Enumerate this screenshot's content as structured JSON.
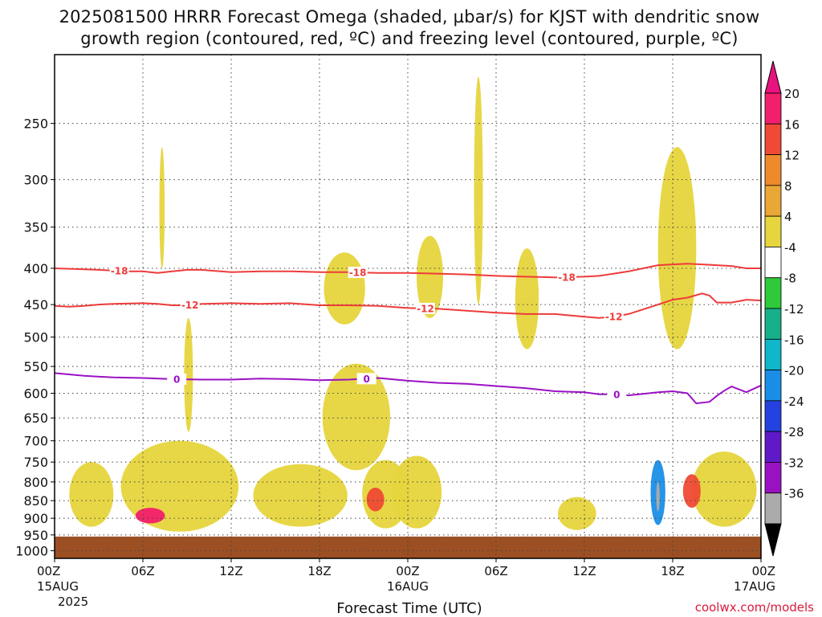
{
  "title_line1": "2025081500 HRRR Forecast Omega (shaded, µbar/s) for KJST with dendritic snow",
  "title_line2": "growth region (contoured, red, ºC) and freezing level (contoured, purple, ºC)",
  "credit": "coolwx.com/models",
  "colors": {
    "red_contour": "#ee3b3b",
    "purple_contour": "#9a11c4",
    "ground": "#9c4f23",
    "title_text": "#111111",
    "credit_text": "#d81b3a"
  },
  "chart_data": {
    "type": "heatmap",
    "xlabel": "Forecast Time (UTC)",
    "x_ticks": [
      {
        "label": "00Z",
        "sub1": "15AUG",
        "sub2": "2025",
        "hour": 0
      },
      {
        "label": "06Z",
        "sub1": "",
        "sub2": "",
        "hour": 6
      },
      {
        "label": "12Z",
        "sub1": "",
        "sub2": "",
        "hour": 12
      },
      {
        "label": "18Z",
        "sub1": "",
        "sub2": "",
        "hour": 18
      },
      {
        "label": "00Z",
        "sub1": "16AUG",
        "sub2": "",
        "hour": 24
      },
      {
        "label": "06Z",
        "sub1": "",
        "sub2": "",
        "hour": 30
      },
      {
        "label": "12Z",
        "sub1": "",
        "sub2": "",
        "hour": 36
      },
      {
        "label": "18Z",
        "sub1": "",
        "sub2": "",
        "hour": 42
      },
      {
        "label": "00Z",
        "sub1": "17AUG",
        "sub2": "",
        "hour": 48
      }
    ],
    "y_ticks": [
      "250",
      "300",
      "350",
      "400",
      "450",
      "500",
      "550",
      "600",
      "650",
      "700",
      "750",
      "800",
      "850",
      "900",
      "950",
      "1000"
    ],
    "y_scale": "log",
    "y_reversed": true,
    "ylim_hPa": [
      200,
      1025
    ],
    "xlim_hours": [
      0,
      48
    ],
    "grid": true,
    "colorbar": {
      "labels": [
        "20",
        "16",
        "12",
        "8",
        "4",
        "-4",
        "-8",
        "-12",
        "-16",
        "-20",
        "-24",
        "-28",
        "-32",
        "-36"
      ],
      "colors": [
        "#f21f6c",
        "#ef4a35",
        "#ef8a2c",
        "#e9a735",
        "#e6d53c",
        "#ffffff",
        "#2fc93a",
        "#18b08a",
        "#0fb7c8",
        "#1a8ee6",
        "#2442e0",
        "#6019c8",
        "#9a11c4",
        "#ababab"
      ],
      "top_arrow_color": "#e8137e",
      "bottom_arrow_color": "#000000"
    },
    "contours": [
      {
        "name": "-18",
        "color": "#ee3b3b",
        "label_hours": [
          4.4,
          20.6,
          34.8
        ],
        "points": [
          [
            0,
            400
          ],
          [
            1.5,
            401
          ],
          [
            3,
            402
          ],
          [
            5,
            404
          ],
          [
            6,
            404
          ],
          [
            7,
            406
          ],
          [
            8,
            404
          ],
          [
            9,
            402
          ],
          [
            10,
            402
          ],
          [
            12,
            405
          ],
          [
            14,
            404
          ],
          [
            16,
            404
          ],
          [
            18,
            405
          ],
          [
            20,
            405
          ],
          [
            22,
            406
          ],
          [
            24,
            406
          ],
          [
            26,
            407
          ],
          [
            28,
            408
          ],
          [
            30,
            410
          ],
          [
            32,
            411
          ],
          [
            34,
            412
          ],
          [
            36,
            411
          ],
          [
            37,
            410
          ],
          [
            38,
            407
          ],
          [
            39,
            404
          ],
          [
            40,
            400
          ],
          [
            41,
            396
          ],
          [
            42,
            395
          ],
          [
            43,
            394
          ],
          [
            44,
            395
          ],
          [
            45,
            396
          ],
          [
            46,
            397
          ],
          [
            47,
            400
          ],
          [
            48,
            400
          ]
        ]
      },
      {
        "name": "-12",
        "color": "#ee3b3b",
        "label_hours": [
          9.2,
          25.2,
          38.0
        ],
        "points": [
          [
            0,
            452
          ],
          [
            1,
            453
          ],
          [
            2,
            452
          ],
          [
            3,
            450
          ],
          [
            4,
            449
          ],
          [
            6,
            448
          ],
          [
            7,
            449
          ],
          [
            8,
            451
          ],
          [
            9,
            451
          ],
          [
            10,
            449
          ],
          [
            12,
            448
          ],
          [
            14,
            449
          ],
          [
            16,
            448
          ],
          [
            18,
            451
          ],
          [
            20,
            451
          ],
          [
            22,
            452
          ],
          [
            24,
            455
          ],
          [
            26,
            456
          ],
          [
            28,
            459
          ],
          [
            30,
            462
          ],
          [
            32,
            464
          ],
          [
            34,
            464
          ],
          [
            36,
            468
          ],
          [
            37,
            470
          ],
          [
            38,
            468
          ],
          [
            39,
            464
          ],
          [
            40,
            457
          ],
          [
            41,
            450
          ],
          [
            42,
            443
          ],
          [
            43,
            440
          ],
          [
            44,
            434
          ],
          [
            44.5,
            437
          ],
          [
            45,
            447
          ],
          [
            46,
            447
          ],
          [
            47,
            443
          ],
          [
            48,
            444
          ]
        ]
      },
      {
        "name": "0",
        "color": "#9a11c4",
        "label_hours": [
          8.3,
          21.2,
          38.2
        ],
        "points": [
          [
            0,
            562
          ],
          [
            2,
            567
          ],
          [
            4,
            570
          ],
          [
            6,
            571
          ],
          [
            8,
            573
          ],
          [
            10,
            574
          ],
          [
            12,
            574
          ],
          [
            14,
            572
          ],
          [
            16,
            573
          ],
          [
            18,
            575
          ],
          [
            20,
            574
          ],
          [
            22,
            571
          ],
          [
            24,
            576
          ],
          [
            26,
            580
          ],
          [
            28,
            582
          ],
          [
            30,
            586
          ],
          [
            32,
            590
          ],
          [
            34,
            596
          ],
          [
            36,
            598
          ],
          [
            37,
            602
          ],
          [
            38,
            602
          ],
          [
            39,
            604
          ],
          [
            40,
            601
          ],
          [
            41,
            598
          ],
          [
            42,
            596
          ],
          [
            43,
            600
          ],
          [
            43.6,
            620
          ],
          [
            44.5,
            617
          ],
          [
            45,
            605
          ],
          [
            45.5,
            595
          ],
          [
            46,
            587
          ],
          [
            47,
            598
          ],
          [
            48,
            585
          ]
        ]
      }
    ],
    "omega_features": [
      {
        "level": "4",
        "center_hour": 7.3,
        "center_hPa": 330,
        "half_width_h": 0.18,
        "top_hPa": 270,
        "bottom_hPa": 400
      },
      {
        "level": "4",
        "center_hour": 9.1,
        "center_hPa": 570,
        "half_width_h": 0.3,
        "top_hPa": 470,
        "bottom_hPa": 680
      },
      {
        "level": "4",
        "center_hour": 2.5,
        "center_hPa": 830,
        "half_width_h": 1.5,
        "top_hPa": 750,
        "bottom_hPa": 925
      },
      {
        "level": "4",
        "center_hour": 8.5,
        "center_hPa": 800,
        "half_width_h": 4.0,
        "top_hPa": 700,
        "bottom_hPa": 940
      },
      {
        "level": "4",
        "center_hour": 16.7,
        "center_hPa": 840,
        "half_width_h": 3.2,
        "top_hPa": 755,
        "bottom_hPa": 925
      },
      {
        "level": "4",
        "center_hour": 19.7,
        "center_hPa": 450,
        "half_width_h": 1.4,
        "top_hPa": 380,
        "bottom_hPa": 480
      },
      {
        "level": "4",
        "center_hour": 20.5,
        "center_hPa": 660,
        "half_width_h": 2.3,
        "top_hPa": 545,
        "bottom_hPa": 770
      },
      {
        "level": "4",
        "center_hour": 22.5,
        "center_hPa": 820,
        "half_width_h": 1.6,
        "top_hPa": 745,
        "bottom_hPa": 930
      },
      {
        "level": "4",
        "center_hour": 24.6,
        "center_hPa": 830,
        "half_width_h": 1.7,
        "top_hPa": 735,
        "bottom_hPa": 930
      },
      {
        "level": "4",
        "center_hour": 28.8,
        "center_hPa": 320,
        "half_width_h": 0.3,
        "top_hPa": 215,
        "bottom_hPa": 450
      },
      {
        "level": "4",
        "center_hour": 25.5,
        "center_hPa": 420,
        "half_width_h": 0.9,
        "top_hPa": 360,
        "bottom_hPa": 470
      },
      {
        "level": "4",
        "center_hour": 32.1,
        "center_hPa": 440,
        "half_width_h": 0.8,
        "top_hPa": 375,
        "bottom_hPa": 520
      },
      {
        "level": "4",
        "center_hour": 35.5,
        "center_hPa": 890,
        "half_width_h": 1.3,
        "top_hPa": 840,
        "bottom_hPa": 935
      },
      {
        "level": "4",
        "center_hour": 42.3,
        "center_hPa": 390,
        "half_width_h": 1.3,
        "top_hPa": 270,
        "bottom_hPa": 520
      },
      {
        "level": "4",
        "center_hour": 45.5,
        "center_hPa": 780,
        "half_width_h": 2.2,
        "top_hPa": 725,
        "bottom_hPa": 925
      },
      {
        "level": "-4",
        "center_hour": 32.0,
        "center_hPa": 275,
        "half_width_h": 0.6,
        "top_hPa": 240,
        "bottom_hPa": 300
      },
      {
        "level": "-4",
        "center_hour": 28.1,
        "center_hPa": 340,
        "half_width_h": 0.15,
        "top_hPa": 290,
        "bottom_hPa": 380
      },
      {
        "level": "-4",
        "center_hour": 27.9,
        "center_hPa": 810,
        "half_width_h": 0.5,
        "top_hPa": 750,
        "bottom_hPa": 915
      },
      {
        "level": "-20",
        "center_hour": 41.0,
        "center_hPa": 840,
        "half_width_h": 0.5,
        "top_hPa": 745,
        "bottom_hPa": 920
      },
      {
        "level": "-36",
        "center_hour": 41.0,
        "center_hPa": 845,
        "half_width_h": 0.12,
        "top_hPa": 800,
        "bottom_hPa": 880
      },
      {
        "level": "20",
        "center_hour": 6.5,
        "center_hPa": 895,
        "half_width_h": 1.0,
        "top_hPa": 870,
        "bottom_hPa": 915
      },
      {
        "level": "16",
        "center_hour": 21.8,
        "center_hPa": 845,
        "half_width_h": 0.6,
        "top_hPa": 815,
        "bottom_hPa": 880
      },
      {
        "level": "16",
        "center_hour": 43.3,
        "center_hPa": 820,
        "half_width_h": 0.6,
        "top_hPa": 780,
        "bottom_hPa": 870
      }
    ]
  }
}
